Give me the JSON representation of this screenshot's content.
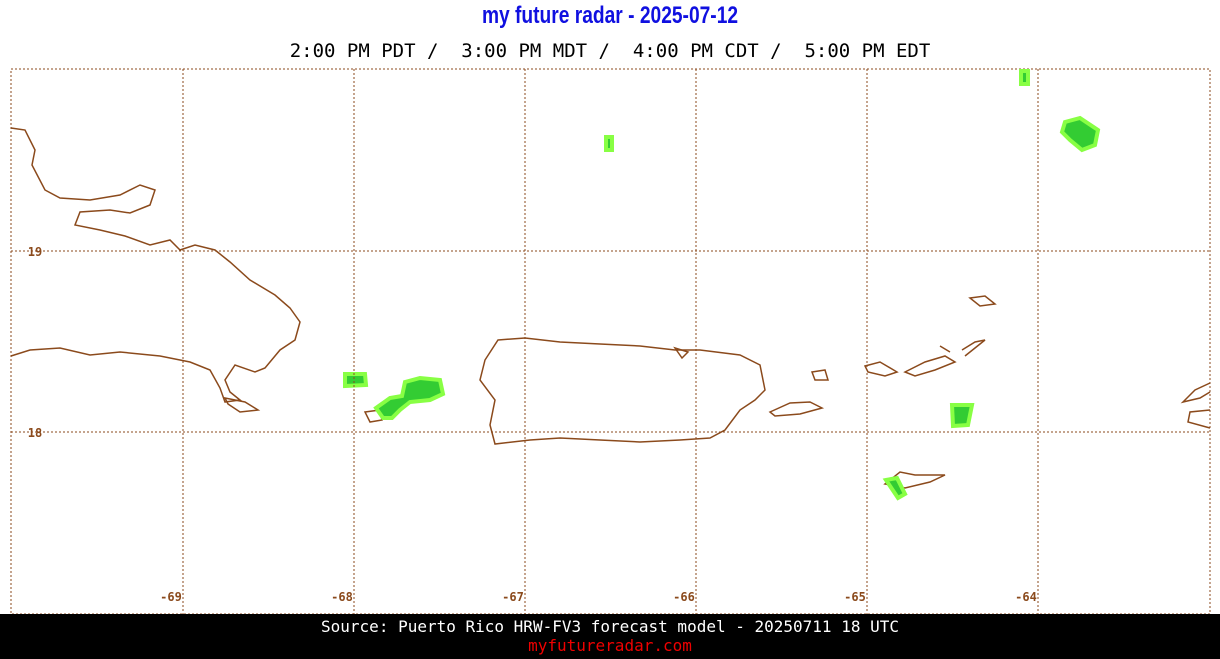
{
  "header": {
    "title": "my future radar - 2025-07-12",
    "subtitle": "2:00 PM PDT /  3:00 PM MDT /  4:00 PM CDT /  5:00 PM EDT"
  },
  "map": {
    "longitudes": [
      -69,
      -68,
      -67,
      -66,
      -65,
      -64
    ],
    "latitudes": [
      19,
      18
    ]
  },
  "footer": {
    "source": "Source: Puerto Rico HRW-FV3 forecast model - 20250711 18 UTC",
    "link": "myfutureradar.com"
  }
}
